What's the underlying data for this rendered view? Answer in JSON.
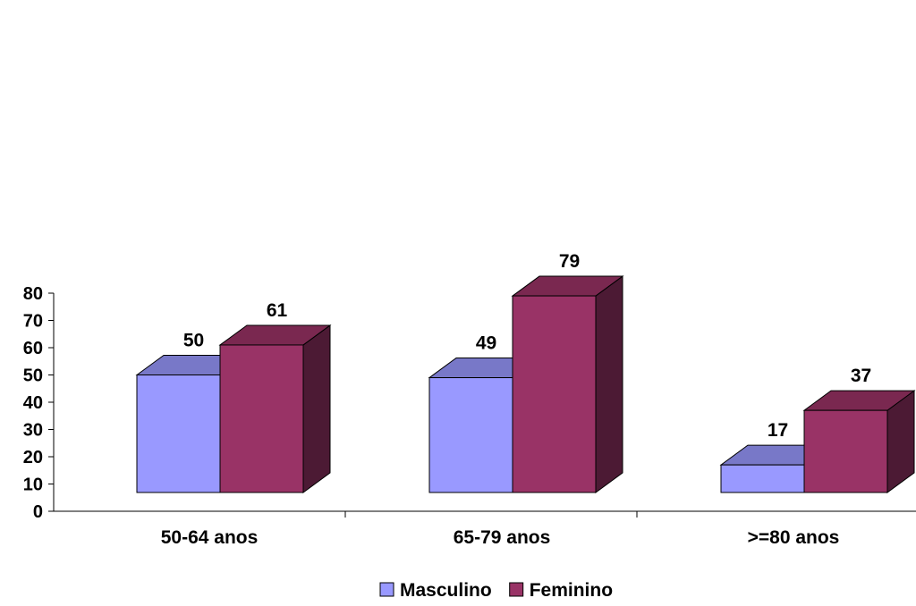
{
  "chart_data": {
    "type": "bar",
    "style": "3d-clustered-column",
    "categories": [
      "50-64 anos",
      "65-79 anos",
      ">=80 anos"
    ],
    "series": [
      {
        "name": "Masculino",
        "values": [
          50,
          49,
          17
        ],
        "colors": {
          "front": "#9999ff",
          "top": "#7878c8"
        }
      },
      {
        "name": "Feminino",
        "values": [
          61,
          79,
          37
        ],
        "colors": {
          "front": "#993366",
          "top": "#7a2850",
          "side": "#4c1a34"
        }
      }
    ],
    "yticks": [
      "0",
      "10",
      "20",
      "30",
      "40",
      "50",
      "60",
      "70",
      "80"
    ],
    "ylim": [
      0,
      80
    ],
    "title": "",
    "xlabel": "",
    "ylabel": "",
    "grid": false,
    "legend": "bottom-center",
    "data_labels": true
  }
}
